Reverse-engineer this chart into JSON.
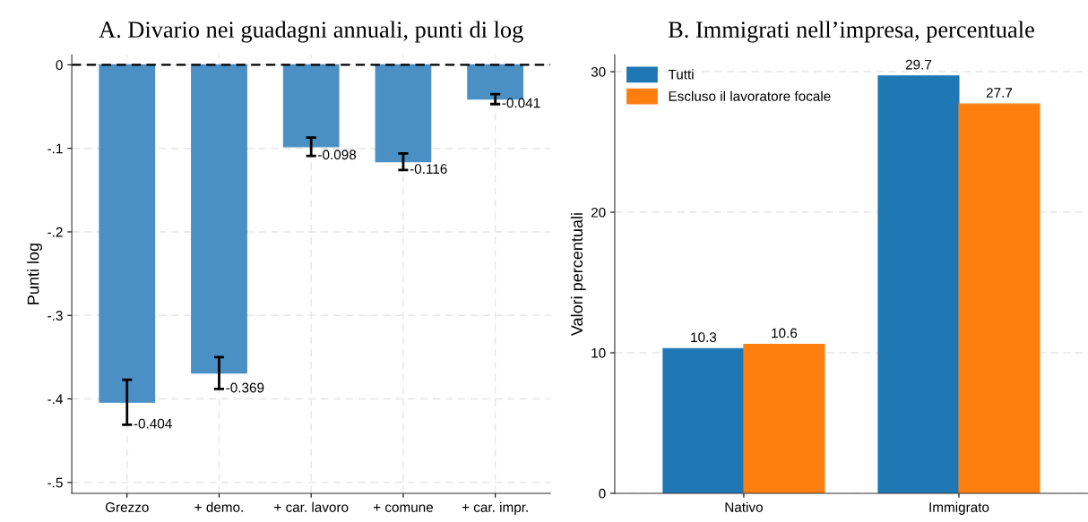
{
  "chart_data": [
    {
      "type": "bar",
      "title": "A. Divario nei guadagni annuali, punti di log",
      "ylabel": "Punti log",
      "categories": [
        "Grezzo",
        "+ demo.",
        "+ car. lavoro",
        "+ comune",
        "+ car. impr."
      ],
      "values": [
        -0.404,
        -0.369,
        -0.098,
        -0.116,
        -0.041
      ],
      "color": "#4a90c4",
      "errors": [
        0.027,
        0.019,
        0.011,
        0.01,
        0.006
      ],
      "value_labels": [
        "-0.404",
        "-0.369",
        "-0.098",
        "-0.116",
        "-0.041"
      ],
      "ylim": [
        -0.513,
        0.012
      ],
      "yticks": [
        {
          "value": 0,
          "label": "0"
        },
        {
          "value": -0.1,
          "label": "-.1"
        },
        {
          "value": -0.2,
          "label": "-.2"
        },
        {
          "value": -0.3,
          "label": "-.3"
        },
        {
          "value": -0.4,
          "label": "-.4"
        },
        {
          "value": -0.5,
          "label": "-.5"
        }
      ],
      "ref_lines": [
        {
          "axis": "y",
          "value": 0,
          "color": "#000000",
          "line_style": "dashed"
        }
      ],
      "grid": true
    },
    {
      "type": "bar",
      "title": "B. Immigrati nell’impresa, percentuale",
      "ylabel": "Valori percentuali",
      "categories": [
        "Nativo",
        "Immigrato"
      ],
      "series": [
        {
          "name": "Tutti",
          "color": "#1f77b4",
          "values": [
            10.3,
            29.7
          ]
        },
        {
          "name": "Escluso il lavoratore focale",
          "color": "#ff7f0e",
          "values": [
            10.6,
            27.7
          ]
        }
      ],
      "ylim": [
        0,
        31.2
      ],
      "yticks": [
        0,
        10,
        20,
        30
      ],
      "data_labels": true,
      "grid": "y",
      "legend": "top left"
    }
  ]
}
